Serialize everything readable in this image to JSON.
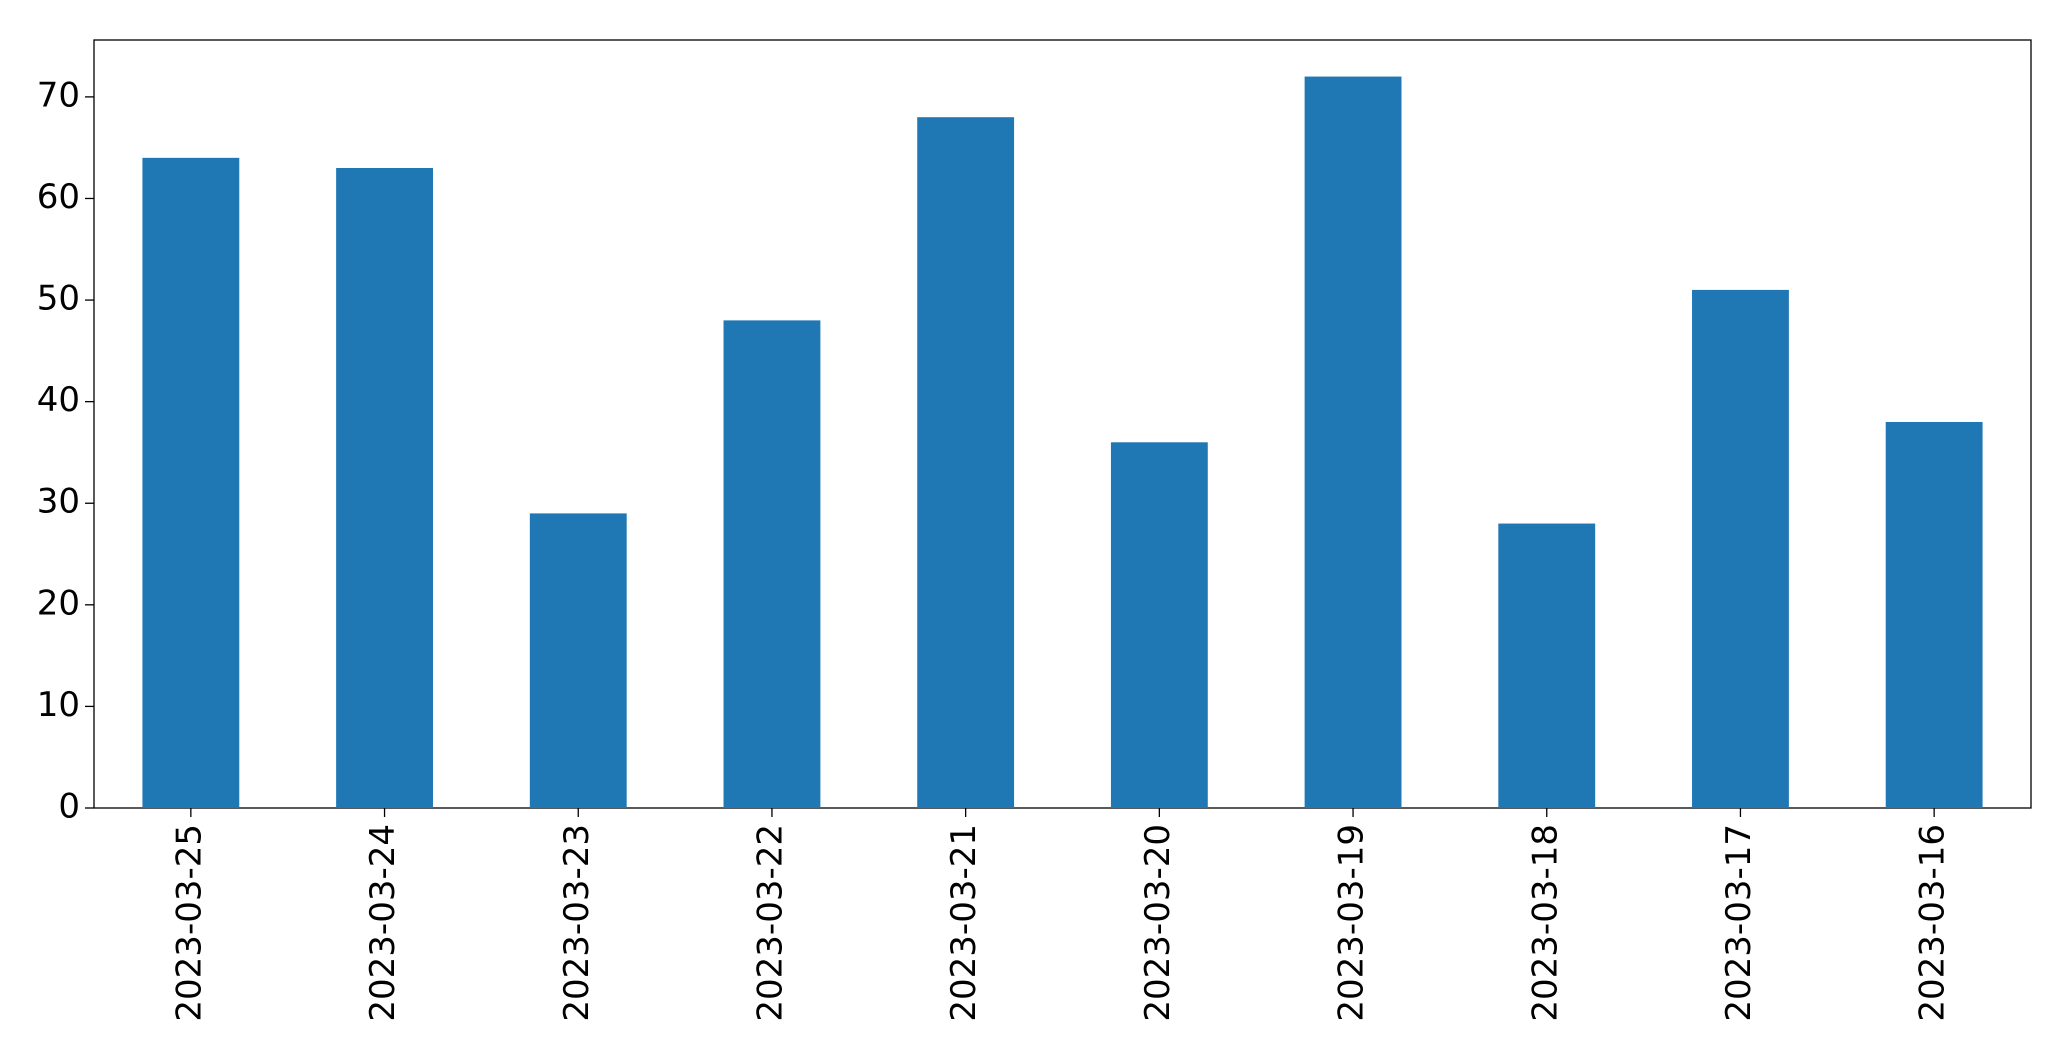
{
  "chart_data": {
    "type": "bar",
    "categories": [
      "2023-03-25",
      "2023-03-24",
      "2023-03-23",
      "2023-03-22",
      "2023-03-21",
      "2023-03-20",
      "2023-03-19",
      "2023-03-18",
      "2023-03-17",
      "2023-03-16"
    ],
    "values": [
      64,
      63,
      29,
      48,
      68,
      36,
      72,
      28,
      51,
      38
    ],
    "color": "#1f77b4",
    "ylim": [
      0,
      75.6
    ],
    "yticks": [
      0,
      10,
      20,
      30,
      40,
      50,
      60,
      70
    ],
    "grid": false
  }
}
